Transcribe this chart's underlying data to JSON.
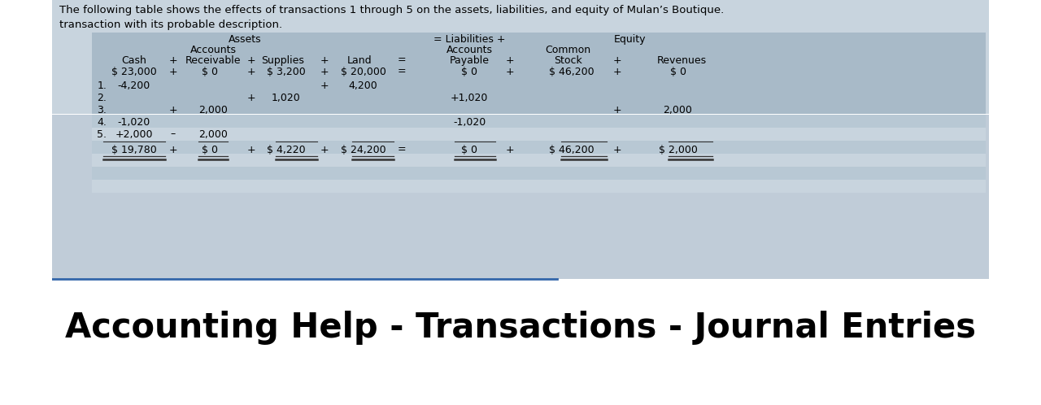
{
  "title_text": "Accounting Help - Transactions - Journal Entries",
  "intro_line1": "The following table shows the effects of transactions 1 through 5 on the assets, liabilities, and equity of Mulan’s Boutique.",
  "intro_line2": "transaction with its probable description.",
  "table_bg": "#b8c8d8",
  "header_bg": "#a0b4c8",
  "white_bg": "#ffffff",
  "blue_line_color": "#4477aa",
  "text_color": "#111111",
  "opening_row": {
    "cash": "$ 23,000",
    "receivable": "$ 0",
    "supplies": "$ 3,200",
    "land": "$ 20,000",
    "payable": "$ 0",
    "stock": "$ 46,200",
    "revenues": "$ 0"
  },
  "closing_row": {
    "cash": "$ 19,780",
    "receivable": "$ 0",
    "supplies": "$ 4,220",
    "land": "$ 24,200",
    "payable": "$ 0",
    "stock": "$ 46,200",
    "revenues": "$ 2,000"
  }
}
